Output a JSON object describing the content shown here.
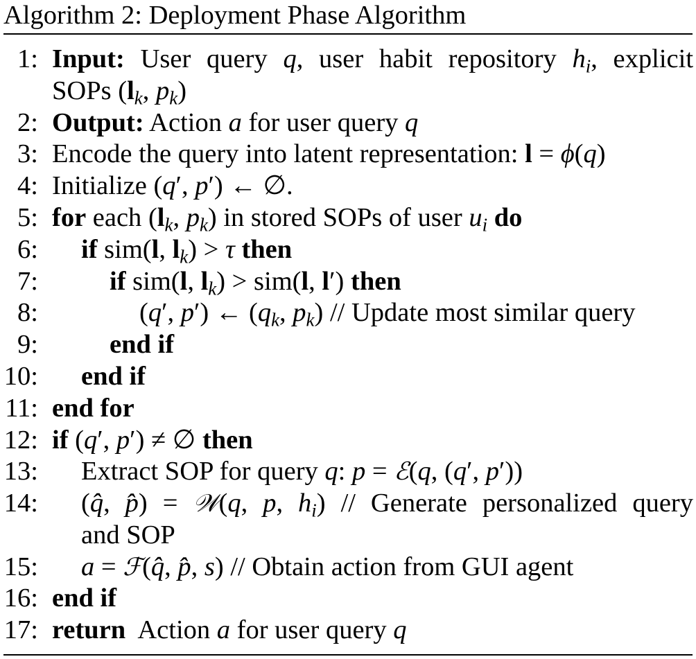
{
  "algorithm": {
    "caption": "Algorithm 2: Deployment Phase Algorithm",
    "lines": [
      {
        "num": "1:"
      },
      {
        "num": ""
      },
      {
        "num": "2:"
      },
      {
        "num": "3:"
      },
      {
        "num": "4:"
      },
      {
        "num": "5:"
      },
      {
        "num": "6:"
      },
      {
        "num": "7:"
      },
      {
        "num": "8:"
      },
      {
        "num": "9:"
      },
      {
        "num": "10:"
      },
      {
        "num": "11:"
      },
      {
        "num": "12:"
      },
      {
        "num": "13:"
      },
      {
        "num": "14:"
      },
      {
        "num": ""
      },
      {
        "num": "15:"
      },
      {
        "num": "16:"
      },
      {
        "num": "17:"
      }
    ],
    "kw": {
      "input": "Input:",
      "output": "Output:",
      "for": "for",
      "do": "do",
      "if": "if",
      "then": "then",
      "end_if": "end if",
      "end_for": "end for",
      "return": "return"
    },
    "text": {
      "l1a": "User query",
      "l1b": ", user habit repository",
      "l1c": ", explicit",
      "l1d": "SOPs",
      "l2a": "Action",
      "l2b": "for user query",
      "l3a": "Encode the query into latent representation:",
      "l4a": "Initialize",
      "l5a": "each",
      "l5b": "in stored SOPs of user",
      "l8c": "// Update most similar query",
      "l13a": "Extract SOP for query",
      "l14c": "// Generate personalized query",
      "l14d": "and SOP",
      "l15c": "// Obtain action from GUI agent",
      "l17a": "Action",
      "l17b": "for user query"
    }
  }
}
